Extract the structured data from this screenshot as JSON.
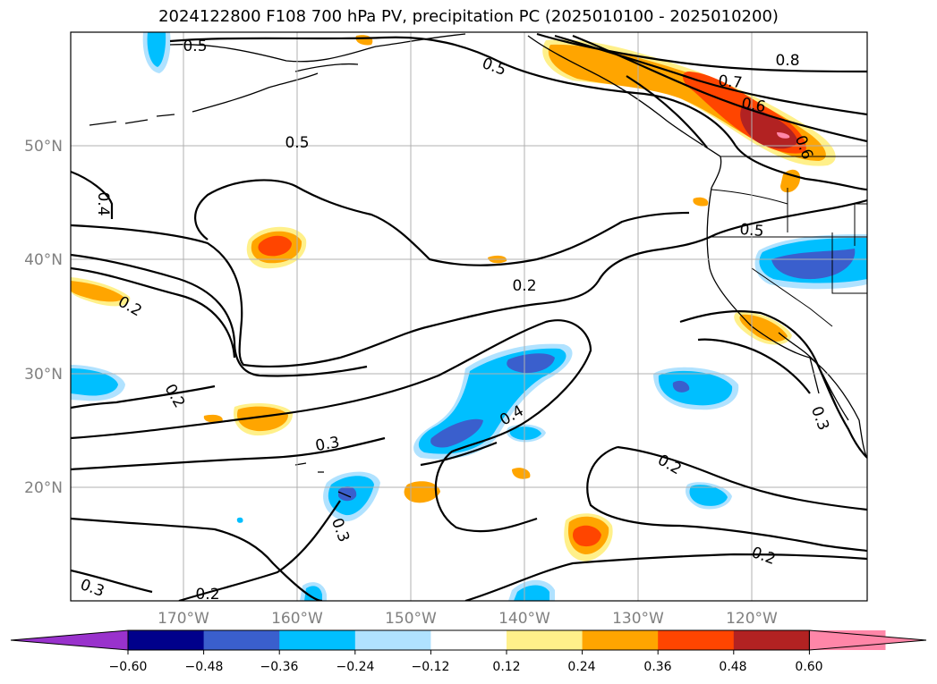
{
  "title": "2024122800 F108 700 hPa PV, precipitation PC (2025010100 - 2025010200)",
  "lat_labels": [
    "50°N",
    "40°N",
    "30°N",
    "20°N"
  ],
  "lon_labels": [
    "170°W",
    "160°W",
    "150°W",
    "140°W",
    "130°W",
    "120°W"
  ],
  "contour_labels": [
    "0.5",
    "0.5",
    "0.8",
    "0.7",
    "0.6",
    "0.6",
    "0.5",
    "0.5",
    "0.4",
    "0.2",
    "0.2",
    "0.2",
    "0.3",
    "0.4",
    "0.2",
    "0.3",
    "0.3",
    "0.2",
    "0.2",
    "0.3"
  ],
  "colorbar": {
    "ticks": [
      "−0.60",
      "−0.48",
      "−0.36",
      "−0.24",
      "−0.12",
      "0.12",
      "0.24",
      "0.36",
      "0.48",
      "0.60"
    ],
    "colors": [
      "#9932cc",
      "#00008b",
      "#3a5fcd",
      "#00bfff",
      "#b0e2ff",
      "#ffffff",
      "#fff08a",
      "#ffa500",
      "#ff4500",
      "#b22222",
      "#ff86a8",
      "#ff86a8"
    ]
  },
  "colors": {
    "c_lightblue": "#b0e2ff",
    "c_blue": "#00bfff",
    "c_royal": "#3a5fcd",
    "c_navy": "#00008b",
    "c_yellow": "#fff08a",
    "c_orange": "#ffa500",
    "c_redorange": "#ff4500",
    "c_firebrick": "#b22222",
    "c_pink": "#ff86a8"
  }
}
